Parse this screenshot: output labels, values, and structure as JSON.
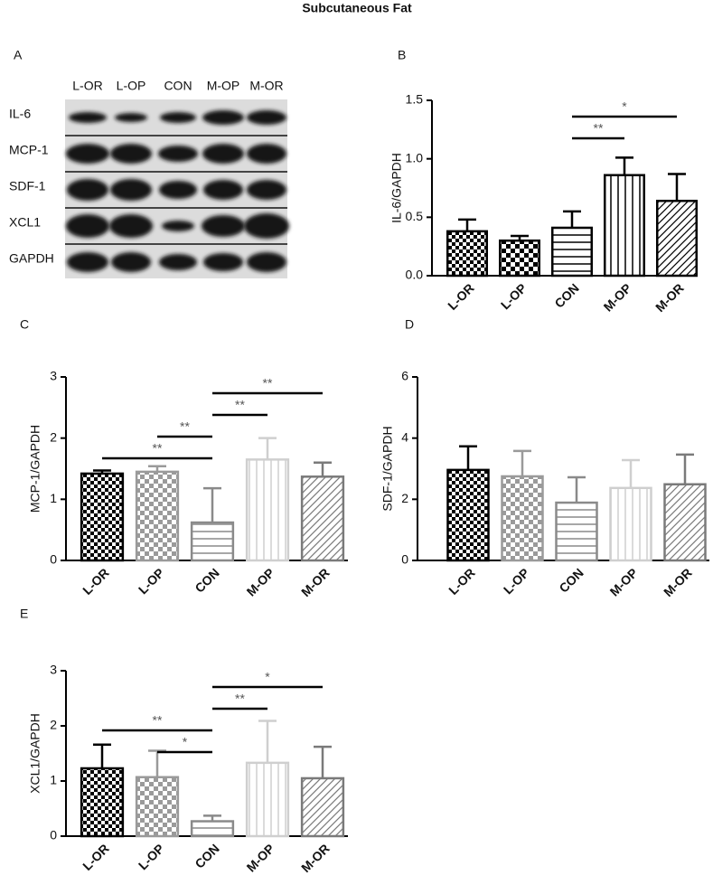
{
  "title": "Subcutaneous Fat",
  "blot": {
    "panel": "A",
    "lanes": [
      "L-OR",
      "L-OP",
      "CON",
      "M-OP",
      "M-OR"
    ],
    "rows": [
      "IL-6",
      "MCP-1",
      "SDF-1",
      "XCL1",
      "GAPDH"
    ]
  },
  "chart_data": [
    {
      "type": "bar",
      "panel": "B",
      "ylabel": "IL-6/GAPDH",
      "categories": [
        "L-OR",
        "L-OP",
        "CON",
        "M-OP",
        "M-OR"
      ],
      "values": [
        0.38,
        0.3,
        0.41,
        0.86,
        0.64
      ],
      "errors": [
        0.1,
        0.04,
        0.14,
        0.15,
        0.23
      ],
      "colors": [
        "#000000",
        "#000000",
        "#000000",
        "#000000",
        "#000000"
      ],
      "ylim": [
        0,
        1.5
      ],
      "yticks": [
        {
          "value": 0,
          "label": "0.0"
        },
        0.5,
        {
          "value": 1,
          "label": "1.0"
        },
        1.5
      ],
      "significance": [
        {
          "between": [
            "CON",
            "M-OR"
          ],
          "label": "*"
        },
        {
          "between": [
            "CON",
            "M-OP"
          ],
          "label": "**"
        }
      ]
    },
    {
      "type": "bar",
      "panel": "C",
      "ylabel": "MCP-1/GAPDH",
      "categories": [
        "L-OR",
        "L-OP",
        "CON",
        "M-OP",
        "M-OR"
      ],
      "values": [
        1.42,
        1.45,
        0.62,
        1.65,
        1.37
      ],
      "errors": [
        0.05,
        0.09,
        0.56,
        0.35,
        0.23
      ],
      "colors": [
        "#000000",
        "#9a9a9a",
        "#8a8a8a",
        "#cfcfcf",
        "#7a7a7a"
      ],
      "ylim": [
        0,
        3
      ],
      "yticks": [
        0,
        1,
        2,
        3
      ],
      "significance": [
        {
          "between": [
            "CON",
            "M-OR"
          ],
          "label": "**"
        },
        {
          "between": [
            "CON",
            "M-OP"
          ],
          "label": "**"
        },
        {
          "between": [
            "L-OP",
            "CON"
          ],
          "label": "**"
        },
        {
          "between": [
            "L-OR",
            "CON"
          ],
          "label": "**"
        }
      ]
    },
    {
      "type": "bar",
      "panel": "D",
      "ylabel": "SDF-1/GAPDH",
      "categories": [
        "L-OR",
        "L-OP",
        "CON",
        "M-OP",
        "M-OR"
      ],
      "values": [
        2.96,
        2.75,
        1.89,
        2.37,
        2.49
      ],
      "errors": [
        0.77,
        0.83,
        0.83,
        0.91,
        0.97
      ],
      "colors": [
        "#000000",
        "#9a9a9a",
        "#8a8a8a",
        "#cfcfcf",
        "#7a7a7a"
      ],
      "ylim": [
        0,
        6
      ],
      "yticks": [
        0,
        2,
        4,
        6
      ],
      "significance": []
    },
    {
      "type": "bar",
      "panel": "E",
      "ylabel": "XCL1/GAPDH",
      "categories": [
        "L-OR",
        "L-OP",
        "CON",
        "M-OP",
        "M-OR"
      ],
      "values": [
        1.23,
        1.07,
        0.27,
        1.33,
        1.05
      ],
      "errors": [
        0.43,
        0.48,
        0.1,
        0.76,
        0.57
      ],
      "colors": [
        "#000000",
        "#9a9a9a",
        "#8a8a8a",
        "#cfcfcf",
        "#7a7a7a"
      ],
      "ylim": [
        0,
        3
      ],
      "yticks": [
        0,
        1,
        2,
        3
      ],
      "significance": [
        {
          "between": [
            "CON",
            "M-OR"
          ],
          "label": "*"
        },
        {
          "between": [
            "CON",
            "M-OP"
          ],
          "label": "**"
        },
        {
          "between": [
            "L-OR",
            "CON"
          ],
          "label": "**"
        },
        {
          "between": [
            "L-OP",
            "CON"
          ],
          "label": "*"
        }
      ]
    }
  ]
}
